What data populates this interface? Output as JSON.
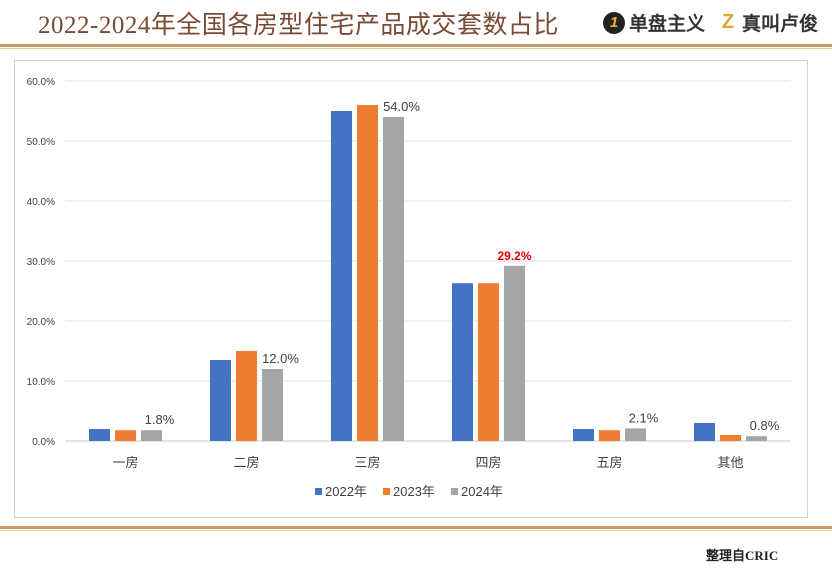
{
  "header": {
    "title": "2022-2024年全国各房型住宅产品成交套数占比",
    "brand1_logo": "1",
    "brand1": "单盘主义",
    "brand2_logo": "Z",
    "brand2": "真叫卢俊"
  },
  "footer": {
    "source": "整理自CRIC"
  },
  "colors": {
    "s2022": "#4472C4",
    "s2023": "#ED7D31",
    "s2024": "#A5A5A5",
    "highlight": "#E00000",
    "accent": "#C89A63"
  },
  "chart_data": {
    "type": "bar",
    "title": "2022-2024年全国各房型住宅产品成交套数占比",
    "categories": [
      "一房",
      "二房",
      "三房",
      "四房",
      "五房",
      "其他"
    ],
    "series": [
      {
        "name": "2022年",
        "values": [
          2.0,
          13.5,
          55.0,
          26.3,
          2.0,
          3.0
        ]
      },
      {
        "name": "2023年",
        "values": [
          1.8,
          15.0,
          56.0,
          26.3,
          1.8,
          1.0
        ]
      },
      {
        "name": "2024年",
        "values": [
          1.8,
          12.0,
          54.0,
          29.2,
          2.1,
          0.8
        ]
      }
    ],
    "data_labels": [
      {
        "category": "一房",
        "series": "2024年",
        "text": "1.8%"
      },
      {
        "category": "二房",
        "series": "2024年",
        "text": "12.0%"
      },
      {
        "category": "三房",
        "series": "2024年",
        "text": "54.0%"
      },
      {
        "category": "四房",
        "series": "2024年",
        "text": "29.2%",
        "highlight": true
      },
      {
        "category": "五房",
        "series": "2024年",
        "text": "2.1%"
      },
      {
        "category": "其他",
        "series": "2024年",
        "text": "0.8%"
      }
    ],
    "yticks": [
      "0.0%",
      "10.0%",
      "20.0%",
      "30.0%",
      "40.0%",
      "50.0%",
      "60.0%"
    ],
    "ylim": [
      0,
      60
    ],
    "xlabel": "",
    "ylabel": "",
    "grid": true,
    "legend": "bottom-center"
  }
}
